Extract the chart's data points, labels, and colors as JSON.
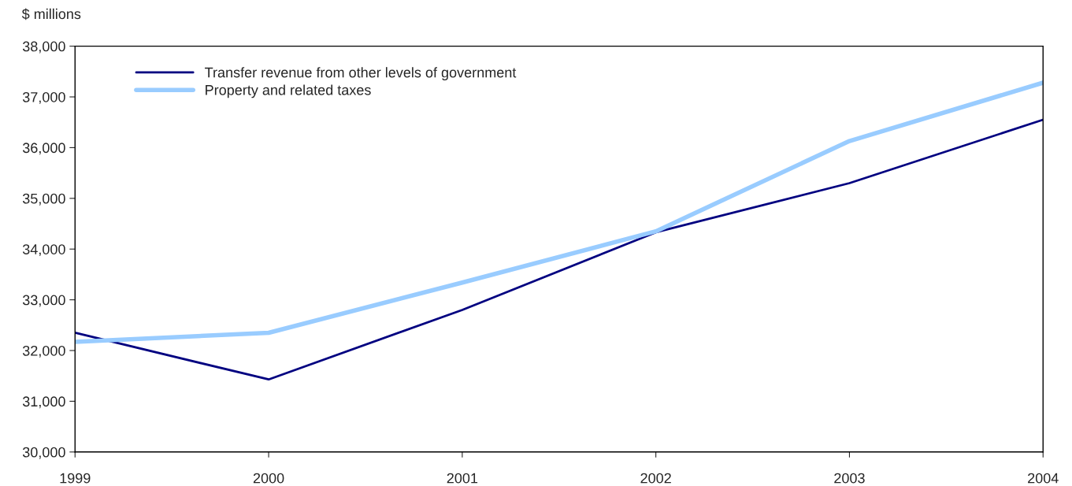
{
  "chart_data": {
    "type": "line",
    "ylabel": "$ millions",
    "x": [
      1999,
      2000,
      2001,
      2002,
      2003,
      2004
    ],
    "series": [
      {
        "name": "Transfer revenue from other levels of government",
        "color": "#000080",
        "values": [
          32350,
          31430,
          32800,
          34330,
          35300,
          36550
        ]
      },
      {
        "name": "Property and related taxes",
        "color": "#99ccff",
        "values": [
          32170,
          32350,
          33340,
          34350,
          36130,
          37280
        ]
      }
    ],
    "xlim": [
      1999,
      2004
    ],
    "xticks": [
      1999,
      2000,
      2001,
      2002,
      2003,
      2004
    ],
    "ylim": [
      30000,
      38000
    ],
    "yticks": [
      {
        "value": 30000,
        "label": "30,000"
      },
      {
        "value": 31000,
        "label": "31,000"
      },
      {
        "value": 32000,
        "label": "32,000"
      },
      {
        "value": 33000,
        "label": "33,000"
      },
      {
        "value": 34000,
        "label": "34,000"
      },
      {
        "value": 35000,
        "label": "35,000"
      },
      {
        "value": 36000,
        "label": "36,000"
      },
      {
        "value": 37000,
        "label": "37,000"
      },
      {
        "value": 38000,
        "label": "38,000"
      }
    ],
    "grid": false,
    "legend": "top left"
  }
}
